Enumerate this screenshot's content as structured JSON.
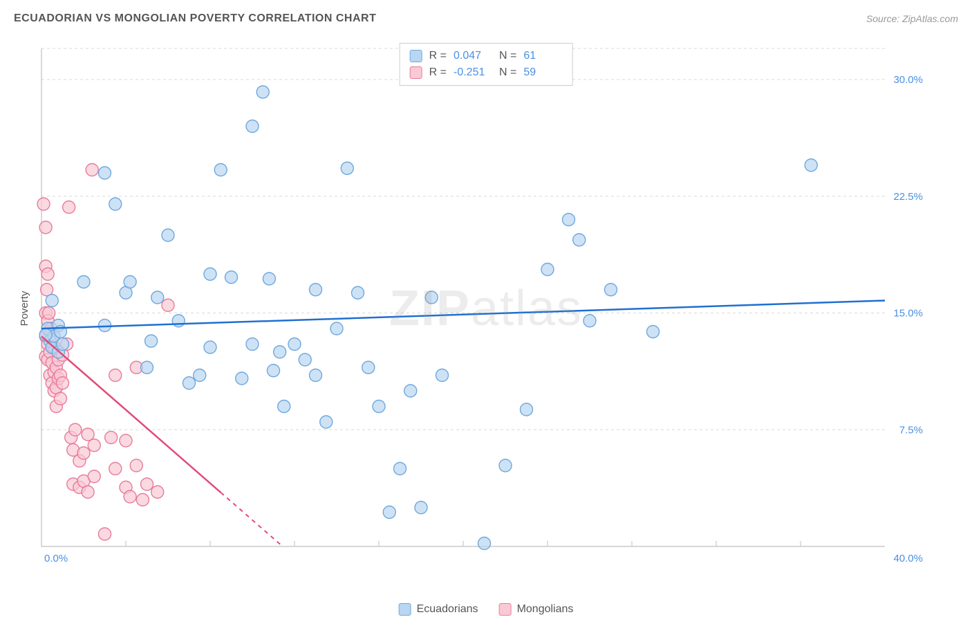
{
  "title": "ECUADORIAN VS MONGOLIAN POVERTY CORRELATION CHART",
  "source": "Source: ZipAtlas.com",
  "watermark": "ZIPatlas",
  "y_axis_label": "Poverty",
  "chart": {
    "type": "scatter",
    "xlim": [
      0,
      40
    ],
    "ylim": [
      0,
      32
    ],
    "x_tick_labels": [
      "0.0%",
      "40.0%"
    ],
    "x_tick_label_color": "#4a90e2",
    "y_ticks": [
      7.5,
      15.0,
      22.5,
      30.0
    ],
    "y_tick_labels": [
      "7.5%",
      "15.0%",
      "22.5%",
      "30.0%"
    ],
    "y_tick_label_color": "#4a90e2",
    "x_minor_ticks": [
      4,
      8,
      12,
      16,
      20,
      24,
      28,
      32,
      36
    ],
    "grid_color": "#d8d8d8",
    "axis_color": "#bfbfbf",
    "background_color": "#ffffff",
    "series": [
      {
        "name": "Ecuadorians",
        "color_fill": "#b9d6f2",
        "color_stroke": "#6fa8dc",
        "marker_r": 9,
        "trend": {
          "slope": 0.045,
          "intercept": 14.0,
          "color": "#1f6fd1",
          "dash_from_x": null
        },
        "R": "0.047",
        "N": "61",
        "points": [
          [
            0.3,
            14.0
          ],
          [
            0.4,
            13.2
          ],
          [
            0.5,
            12.8
          ],
          [
            0.5,
            15.8
          ],
          [
            0.6,
            13.5
          ],
          [
            0.8,
            14.2
          ],
          [
            0.8,
            12.5
          ],
          [
            0.9,
            13.8
          ],
          [
            1.0,
            13.0
          ],
          [
            2.0,
            17.0
          ],
          [
            3.0,
            24.0
          ],
          [
            3.0,
            14.2
          ],
          [
            3.5,
            22.0
          ],
          [
            4.0,
            16.3
          ],
          [
            4.2,
            17.0
          ],
          [
            5.0,
            11.5
          ],
          [
            5.2,
            13.2
          ],
          [
            5.5,
            16.0
          ],
          [
            6.0,
            20.0
          ],
          [
            6.5,
            14.5
          ],
          [
            7.0,
            10.5
          ],
          [
            7.5,
            11.0
          ],
          [
            8.0,
            17.5
          ],
          [
            8.0,
            12.8
          ],
          [
            8.5,
            24.2
          ],
          [
            9.0,
            17.3
          ],
          [
            9.5,
            10.8
          ],
          [
            10.0,
            27.0
          ],
          [
            10.0,
            13.0
          ],
          [
            10.5,
            29.2
          ],
          [
            10.8,
            17.2
          ],
          [
            11.0,
            11.3
          ],
          [
            11.3,
            12.5
          ],
          [
            11.5,
            9.0
          ],
          [
            12.0,
            13.0
          ],
          [
            12.5,
            12.0
          ],
          [
            13.0,
            16.5
          ],
          [
            13.0,
            11.0
          ],
          [
            13.5,
            8.0
          ],
          [
            14.0,
            14.0
          ],
          [
            14.5,
            24.3
          ],
          [
            15.0,
            16.3
          ],
          [
            15.5,
            11.5
          ],
          [
            16.0,
            9.0
          ],
          [
            16.5,
            2.2
          ],
          [
            17.0,
            5.0
          ],
          [
            17.5,
            10.0
          ],
          [
            18.0,
            2.5
          ],
          [
            18.5,
            16.0
          ],
          [
            19.0,
            11.0
          ],
          [
            21.0,
            0.2
          ],
          [
            22.0,
            5.2
          ],
          [
            23.0,
            8.8
          ],
          [
            24.0,
            17.8
          ],
          [
            25.0,
            21.0
          ],
          [
            25.5,
            19.7
          ],
          [
            26.0,
            14.5
          ],
          [
            27.0,
            16.5
          ],
          [
            29.0,
            13.8
          ],
          [
            36.5,
            24.5
          ],
          [
            0.2,
            13.6
          ]
        ]
      },
      {
        "name": "Mongolians",
        "color_fill": "#f9c9d4",
        "color_stroke": "#e77b9b",
        "marker_r": 9,
        "trend": {
          "slope": -1.18,
          "intercept": 13.5,
          "color": "#e24a78",
          "dash_from_x": 8.5
        },
        "R": "-0.251",
        "N": "59",
        "points": [
          [
            0.1,
            22.0
          ],
          [
            0.2,
            20.5
          ],
          [
            0.2,
            18.0
          ],
          [
            0.2,
            15.0
          ],
          [
            0.2,
            13.5
          ],
          [
            0.2,
            12.2
          ],
          [
            0.25,
            16.5
          ],
          [
            0.3,
            17.5
          ],
          [
            0.3,
            14.5
          ],
          [
            0.3,
            13.0
          ],
          [
            0.3,
            12.0
          ],
          [
            0.35,
            15.0
          ],
          [
            0.4,
            13.8
          ],
          [
            0.4,
            12.5
          ],
          [
            0.4,
            11.0
          ],
          [
            0.45,
            14.0
          ],
          [
            0.5,
            13.3
          ],
          [
            0.5,
            11.8
          ],
          [
            0.5,
            10.5
          ],
          [
            0.6,
            12.8
          ],
          [
            0.6,
            11.2
          ],
          [
            0.6,
            10.0
          ],
          [
            0.7,
            11.5
          ],
          [
            0.7,
            10.2
          ],
          [
            0.7,
            9.0
          ],
          [
            0.8,
            12.0
          ],
          [
            0.8,
            10.8
          ],
          [
            0.9,
            11.0
          ],
          [
            0.9,
            9.5
          ],
          [
            1.0,
            10.5
          ],
          [
            1.0,
            12.3
          ],
          [
            1.2,
            13.0
          ],
          [
            1.3,
            21.8
          ],
          [
            1.4,
            7.0
          ],
          [
            1.5,
            6.2
          ],
          [
            1.5,
            4.0
          ],
          [
            1.6,
            7.5
          ],
          [
            1.8,
            5.5
          ],
          [
            1.8,
            3.8
          ],
          [
            2.0,
            6.0
          ],
          [
            2.0,
            4.2
          ],
          [
            2.2,
            7.2
          ],
          [
            2.2,
            3.5
          ],
          [
            2.4,
            24.2
          ],
          [
            2.5,
            6.5
          ],
          [
            2.5,
            4.5
          ],
          [
            3.0,
            0.8
          ],
          [
            3.3,
            7.0
          ],
          [
            3.5,
            5.0
          ],
          [
            3.5,
            11.0
          ],
          [
            4.0,
            6.8
          ],
          [
            4.0,
            3.8
          ],
          [
            4.2,
            3.2
          ],
          [
            4.5,
            11.5
          ],
          [
            4.5,
            5.2
          ],
          [
            4.8,
            3.0
          ],
          [
            5.0,
            4.0
          ],
          [
            5.5,
            3.5
          ],
          [
            6.0,
            15.5
          ]
        ]
      }
    ]
  },
  "stats_box": {
    "rows": [
      {
        "swatch_fill": "#b9d6f2",
        "swatch_stroke": "#6fa8dc",
        "r_label": "R =",
        "r_val": "0.047",
        "n_label": "N =",
        "n_val": "61",
        "val_color": "#4a90e2"
      },
      {
        "swatch_fill": "#f9c9d4",
        "swatch_stroke": "#e77b9b",
        "r_label": "R =",
        "r_val": "-0.251",
        "n_label": "N =",
        "n_val": "59",
        "val_color": "#4a90e2"
      }
    ]
  },
  "legend": {
    "items": [
      {
        "swatch_fill": "#b9d6f2",
        "swatch_stroke": "#6fa8dc",
        "label": "Ecuadorians"
      },
      {
        "swatch_fill": "#f9c9d4",
        "swatch_stroke": "#e77b9b",
        "label": "Mongolians"
      }
    ]
  }
}
